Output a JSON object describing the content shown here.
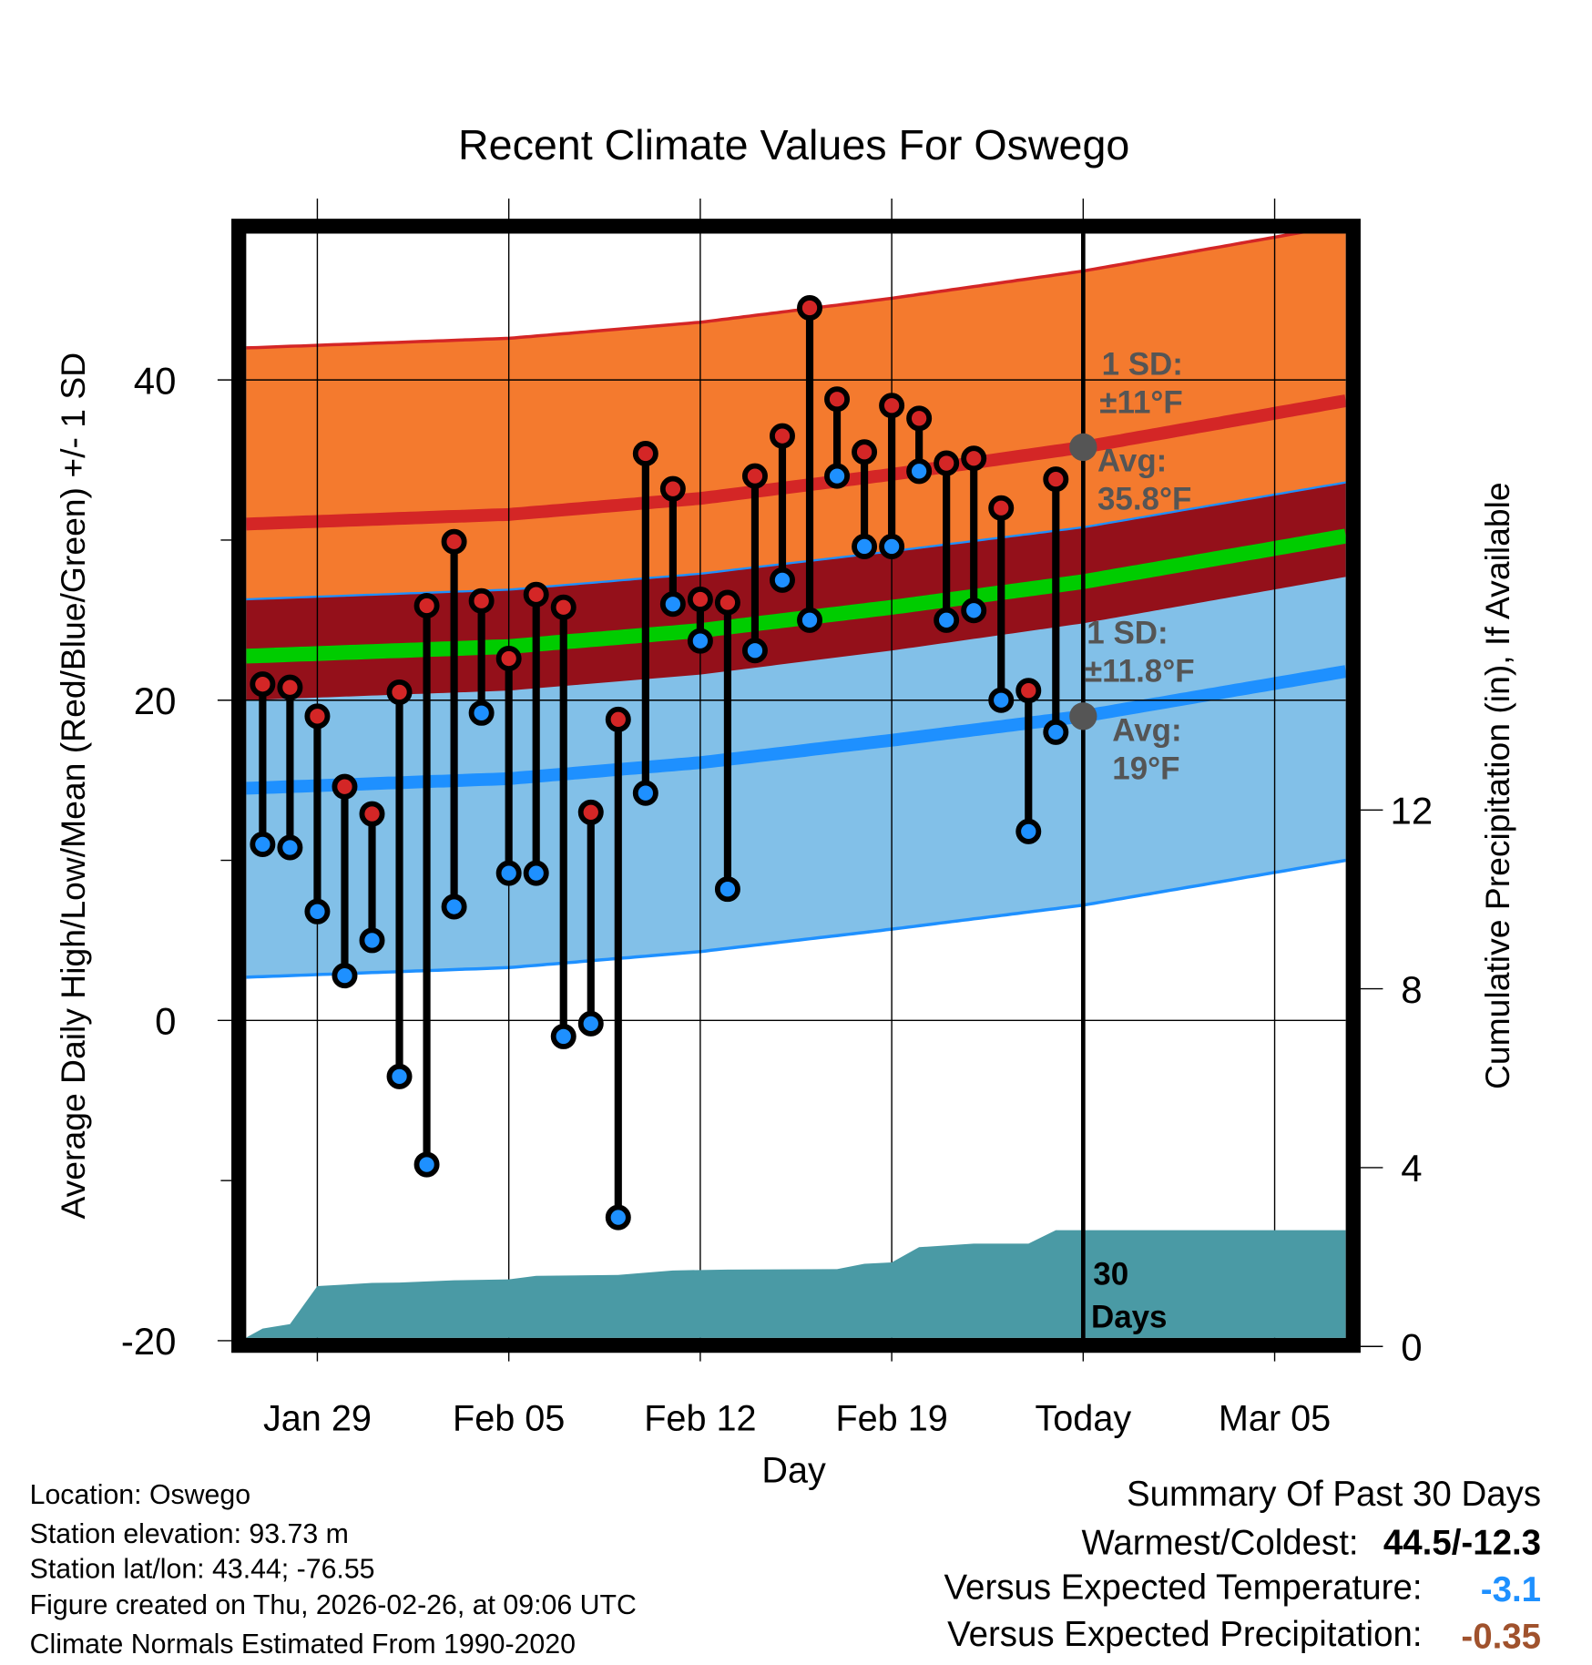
{
  "chart_data": {
    "type": "line",
    "title": "Recent Climate Values For Oswego",
    "xlabel": "Day",
    "ylabel": "Average Daily High/Low/Mean (Red/Blue/Green) +/- 1 SD",
    "y2label": "Cumulative Precipitation (in), If Available",
    "ylim": [
      -20,
      49
    ],
    "y2lim": [
      0,
      11.6
    ],
    "xlim_days_from_jan29": [
      -2.6,
      37.6
    ],
    "x_ticks": [
      {
        "day": 0,
        "label": "Jan 29"
      },
      {
        "day": 7,
        "label": "Feb 05"
      },
      {
        "day": 14,
        "label": "Feb 12"
      },
      {
        "day": 21,
        "label": "Feb 19"
      },
      {
        "day": 28,
        "label": "Today"
      },
      {
        "day": 35,
        "label": "Mar 05"
      }
    ],
    "y_ticks": [
      {
        "value": 40,
        "label": "40"
      },
      {
        "value": 20,
        "label": "20"
      },
      {
        "value": 0,
        "label": "0"
      },
      {
        "value": -20,
        "label": "-20"
      }
    ],
    "y_minor_ticks": [
      30,
      10,
      -10
    ],
    "y2_ticks": [
      {
        "value": 12,
        "label": "12"
      },
      {
        "value": 8,
        "label": "8"
      },
      {
        "value": 4,
        "label": "4"
      },
      {
        "value": 0,
        "label": "0"
      }
    ],
    "grid": true,
    "today_day": 28,
    "observations": {
      "day": [
        -2,
        -1,
        0,
        1,
        2,
        3,
        4,
        5,
        6,
        7,
        8,
        9,
        10,
        11,
        12,
        13,
        14,
        15,
        16,
        17,
        18,
        19,
        20,
        21,
        22,
        23,
        24,
        25,
        26,
        27
      ],
      "high": [
        21,
        20.8,
        19,
        14.6,
        12.9,
        20.5,
        25.9,
        29.9,
        26.2,
        22.6,
        26.6,
        25.8,
        13,
        18.8,
        35.4,
        33.2,
        26.3,
        26.1,
        34,
        36.5,
        44.5,
        38.8,
        35.5,
        38.4,
        37.6,
        34.8,
        35.1,
        32,
        20.6,
        33.8
      ],
      "low": [
        11,
        10.8,
        6.8,
        2.8,
        5,
        -3.5,
        -9,
        7.1,
        19.2,
        9.2,
        9.2,
        -1,
        -0.2,
        -12.3,
        14.2,
        26,
        23.7,
        8.2,
        23.1,
        27.5,
        25,
        34,
        29.6,
        29.6,
        34.3,
        25,
        25.6,
        20,
        11.8,
        18
      ]
    },
    "normals": {
      "day": [
        -2.6,
        7,
        14,
        21,
        28,
        37.6
      ],
      "high_mean": [
        31.0,
        31.6,
        32.6,
        34.1,
        35.8,
        38.7
      ],
      "low_mean": [
        14.5,
        15.1,
        16.1,
        17.5,
        19.0,
        21.8
      ],
      "high_sd": 11,
      "low_sd": 11.8
    },
    "precipitation": {
      "day": [
        -2.6,
        -2,
        -1,
        0,
        2,
        3,
        5,
        7,
        8,
        11,
        13,
        15,
        19,
        20,
        21,
        22,
        24,
        26,
        27,
        37.6
      ],
      "cumulative": [
        0.2,
        0.4,
        0.5,
        1.35,
        1.42,
        1.43,
        1.48,
        1.5,
        1.58,
        1.6,
        1.7,
        1.72,
        1.73,
        1.85,
        1.88,
        2.22,
        2.3,
        2.3,
        2.6,
        2.6
      ]
    },
    "annotations": {
      "high_sd": [
        "1 SD:",
        "±11°F"
      ],
      "high_avg": [
        "Avg:",
        "35.8°F"
      ],
      "low_sd": [
        "1 SD:",
        "±11.8°F"
      ],
      "low_avg": [
        "Avg:",
        "19°F"
      ],
      "days": [
        "30",
        "Days"
      ]
    },
    "colors": {
      "high_band": "#f47a2e",
      "overlap_band": "#94101a",
      "low_band": "#82c0e8",
      "high_line": "#d42626",
      "low_line": "#1e90ff",
      "mean_line": "#00cc00",
      "precip": "#4a9aa5",
      "annotation": "#555555"
    }
  },
  "footer_left": [
    "Location: Oswego",
    "Station elevation: 93.73 m",
    "Station lat/lon: 43.44; -76.55",
    "Figure created on Thu, 2026-02-26, at 09:06 UTC",
    "Climate Normals Estimated From 1990-2020"
  ],
  "summary": {
    "title": "Summary Of Past 30 Days",
    "warmest_label": "Warmest/Coldest:",
    "warmest_value": "44.5/-12.3",
    "temp_label": "Versus Expected Temperature:",
    "temp_value": "-3.1",
    "temp_color": "#1e90ff",
    "precip_label": "Versus Expected Precipitation:",
    "precip_value": "-0.35",
    "precip_color": "#a0522d"
  }
}
